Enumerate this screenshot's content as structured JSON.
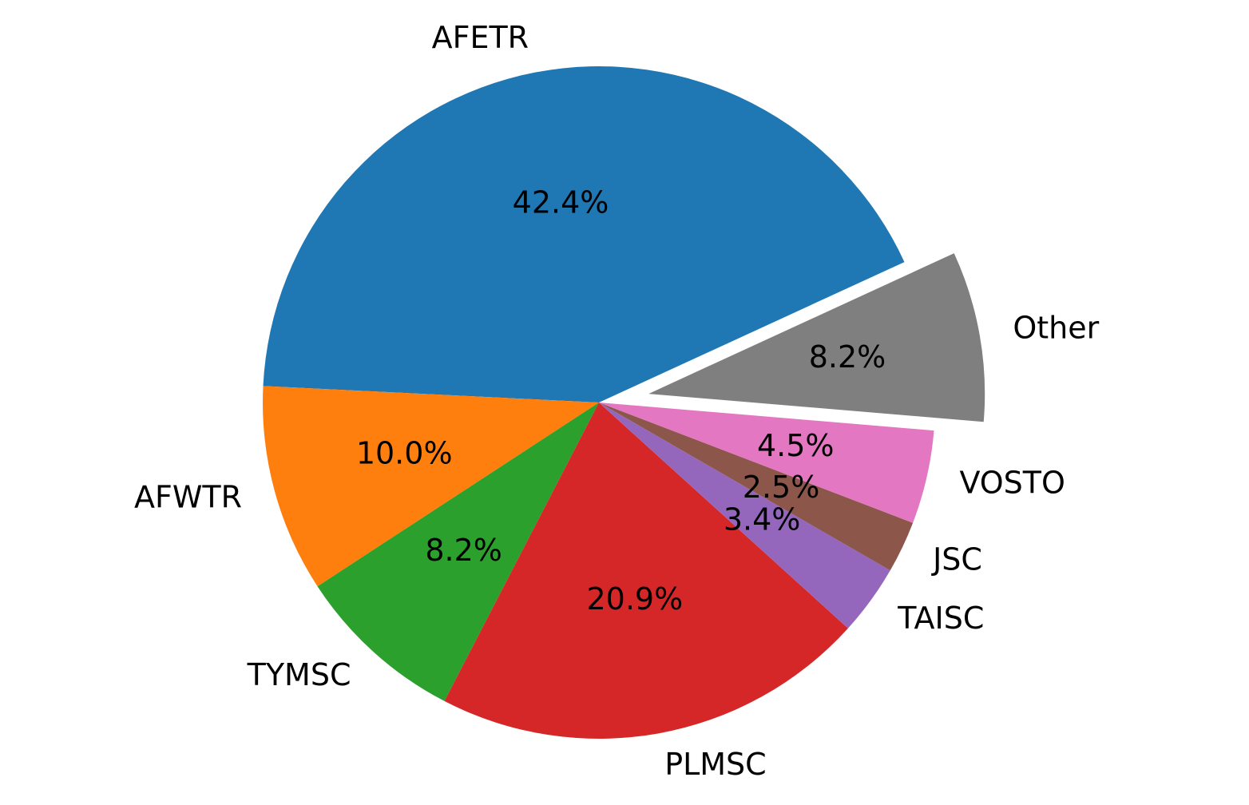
{
  "chart_data": {
    "type": "pie",
    "title": "",
    "start_angle_deg": 24.7,
    "direction": "counterclockwise",
    "slices": [
      {
        "label": "AFETR",
        "value": 42.4,
        "pct_text": "42.4%",
        "color": "#1f77b4",
        "explode": 0
      },
      {
        "label": "AFWTR",
        "value": 10.0,
        "pct_text": "10.0%",
        "color": "#ff7f0e",
        "explode": 0
      },
      {
        "label": "TYMSC",
        "value": 8.2,
        "pct_text": "8.2%",
        "color": "#2ca02c",
        "explode": 0
      },
      {
        "label": "PLMSC",
        "value": 20.9,
        "pct_text": "20.9%",
        "color": "#d62728",
        "explode": 0
      },
      {
        "label": "TAISC",
        "value": 3.4,
        "pct_text": "3.4%",
        "color": "#9467bd",
        "explode": 0
      },
      {
        "label": "JSC",
        "value": 2.5,
        "pct_text": "2.5%",
        "color": "#8c564b",
        "explode": 0
      },
      {
        "label": "VOSTO",
        "value": 4.5,
        "pct_text": "4.5%",
        "color": "#e377c2",
        "explode": 0
      },
      {
        "label": "Other",
        "value": 8.2,
        "pct_text": "8.2%",
        "color": "#7f7f7f",
        "explode": 0.15
      }
    ]
  }
}
